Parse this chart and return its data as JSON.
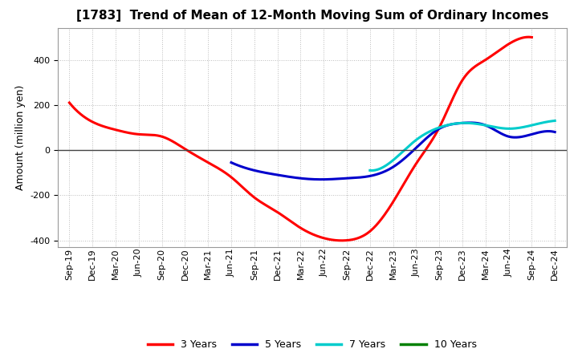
{
  "title": "[1783]  Trend of Mean of 12-Month Moving Sum of Ordinary Incomes",
  "ylabel": "Amount (million yen)",
  "background_color": "#ffffff",
  "plot_bg_color": "#ffffff",
  "ylim": [
    -430,
    540
  ],
  "yticks": [
    -400,
    -200,
    0,
    200,
    400
  ],
  "x_labels": [
    "Sep-19",
    "Dec-19",
    "Mar-20",
    "Jun-20",
    "Sep-20",
    "Dec-20",
    "Mar-21",
    "Jun-21",
    "Sep-21",
    "Dec-21",
    "Mar-22",
    "Jun-22",
    "Sep-22",
    "Dec-22",
    "Mar-23",
    "Jun-23",
    "Sep-23",
    "Dec-23",
    "Mar-24",
    "Jun-24",
    "Sep-24",
    "Dec-24"
  ],
  "series": {
    "3yr": {
      "color": "#ff0000",
      "label": "3 Years",
      "data": [
        210,
        125,
        90,
        70,
        60,
        5,
        -55,
        -120,
        -210,
        -275,
        -345,
        -390,
        -400,
        -360,
        -230,
        -60,
        100,
        310,
        400,
        470,
        500,
        null
      ]
    },
    "5yr": {
      "color": "#0000cc",
      "label": "5 Years",
      "data": [
        null,
        null,
        null,
        null,
        null,
        null,
        null,
        -55,
        -90,
        -110,
        -125,
        -130,
        -125,
        -115,
        -75,
        10,
        95,
        120,
        110,
        60,
        70,
        80
      ]
    },
    "7yr": {
      "color": "#00cccc",
      "label": "7 Years",
      "data": [
        null,
        null,
        null,
        null,
        null,
        null,
        null,
        null,
        null,
        null,
        null,
        null,
        null,
        -90,
        -45,
        45,
        100,
        120,
        110,
        95,
        110,
        130
      ]
    },
    "10yr": {
      "color": "#008000",
      "label": "10 Years",
      "data": [
        null,
        null,
        null,
        null,
        null,
        null,
        null,
        null,
        null,
        null,
        null,
        null,
        null,
        null,
        null,
        null,
        null,
        null,
        null,
        null,
        null,
        null
      ]
    }
  },
  "legend_labels": [
    "3 Years",
    "5 Years",
    "7 Years",
    "10 Years"
  ],
  "legend_colors": [
    "#ff0000",
    "#0000cc",
    "#00cccc",
    "#008000"
  ],
  "grid_color": "#bbbbbb",
  "zero_line_color": "#444444",
  "title_fontsize": 11,
  "ylabel_fontsize": 9,
  "tick_fontsize": 8,
  "legend_fontsize": 9,
  "linewidth": 2.2
}
